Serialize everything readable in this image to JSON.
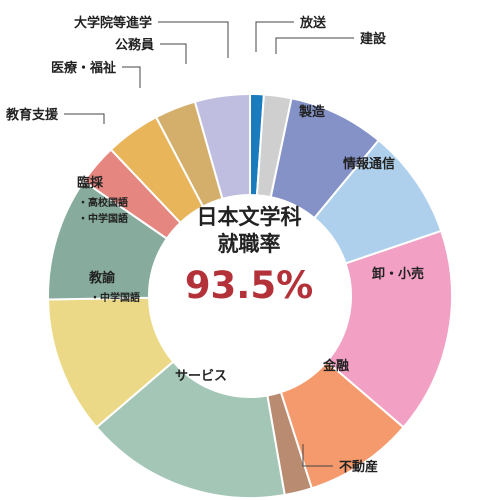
{
  "chart_data": {
    "type": "pie",
    "center": {
      "title_line1": "日本文学科",
      "title_line2": "就職率",
      "rate": "93.5%"
    },
    "slices": [
      {
        "label": "放送",
        "sublabels": [],
        "value": 1.0,
        "color": "#1a7bbf",
        "label_style": "outside",
        "text_color": "#222222"
      },
      {
        "label": "建設",
        "sublabels": [],
        "value": 2.0,
        "color": "#cfcfcf",
        "label_style": "outside",
        "text_color": "#222222"
      },
      {
        "label": "製造",
        "sublabels": [],
        "value": 7.0,
        "color": "#8592c8",
        "label_style": "inside",
        "text_color": "#222222"
      },
      {
        "label": "情報通信",
        "sublabels": [],
        "value": 8.0,
        "color": "#aed0ec",
        "label_style": "inside",
        "text_color": "#222222"
      },
      {
        "label": "卸・小売",
        "sublabels": [],
        "value": 15.0,
        "color": "#f2a0c4",
        "label_style": "inside",
        "text_color": "#222222"
      },
      {
        "label": "金融",
        "sublabels": [],
        "value": 8.0,
        "color": "#f59a6c",
        "label_style": "inside",
        "text_color": "#222222"
      },
      {
        "label": "不動産",
        "sublabels": [],
        "value": 2.0,
        "color": "#b98b70",
        "label_style": "outside",
        "text_color": "#222222"
      },
      {
        "label": "サービス",
        "sublabels": [],
        "value": 15.0,
        "color": "#a4c6b6",
        "label_style": "inside",
        "text_color": "#222222"
      },
      {
        "label": "教諭",
        "sublabels": [
          "・中学国語"
        ],
        "value": 10.0,
        "color": "#ecd987",
        "label_style": "inside",
        "text_color": "#222222"
      },
      {
        "label": "臨採",
        "sublabels": [
          "・高校国語",
          "・中学国語"
        ],
        "value": 9.0,
        "color": "#87ab9c",
        "label_style": "inside",
        "text_color": "#222222"
      },
      {
        "label": "教育支援",
        "sublabels": [],
        "value": 3.0,
        "color": "#e58680",
        "label_style": "outside",
        "text_color": "#222222"
      },
      {
        "label": "医療・福祉",
        "sublabels": [],
        "value": 4.0,
        "color": "#e8b55a",
        "label_style": "outside",
        "text_color": "#222222"
      },
      {
        "label": "公務員",
        "sublabels": [],
        "value": 3.0,
        "color": "#d4af6c",
        "label_style": "outside",
        "text_color": "#222222"
      },
      {
        "label": "大学院等進学",
        "sublabels": [],
        "value": 4.0,
        "color": "#bfbde0",
        "label_style": "outside",
        "text_color": "#222222"
      }
    ],
    "rate_color": "#b3323a",
    "legend": "none",
    "grid": false
  }
}
